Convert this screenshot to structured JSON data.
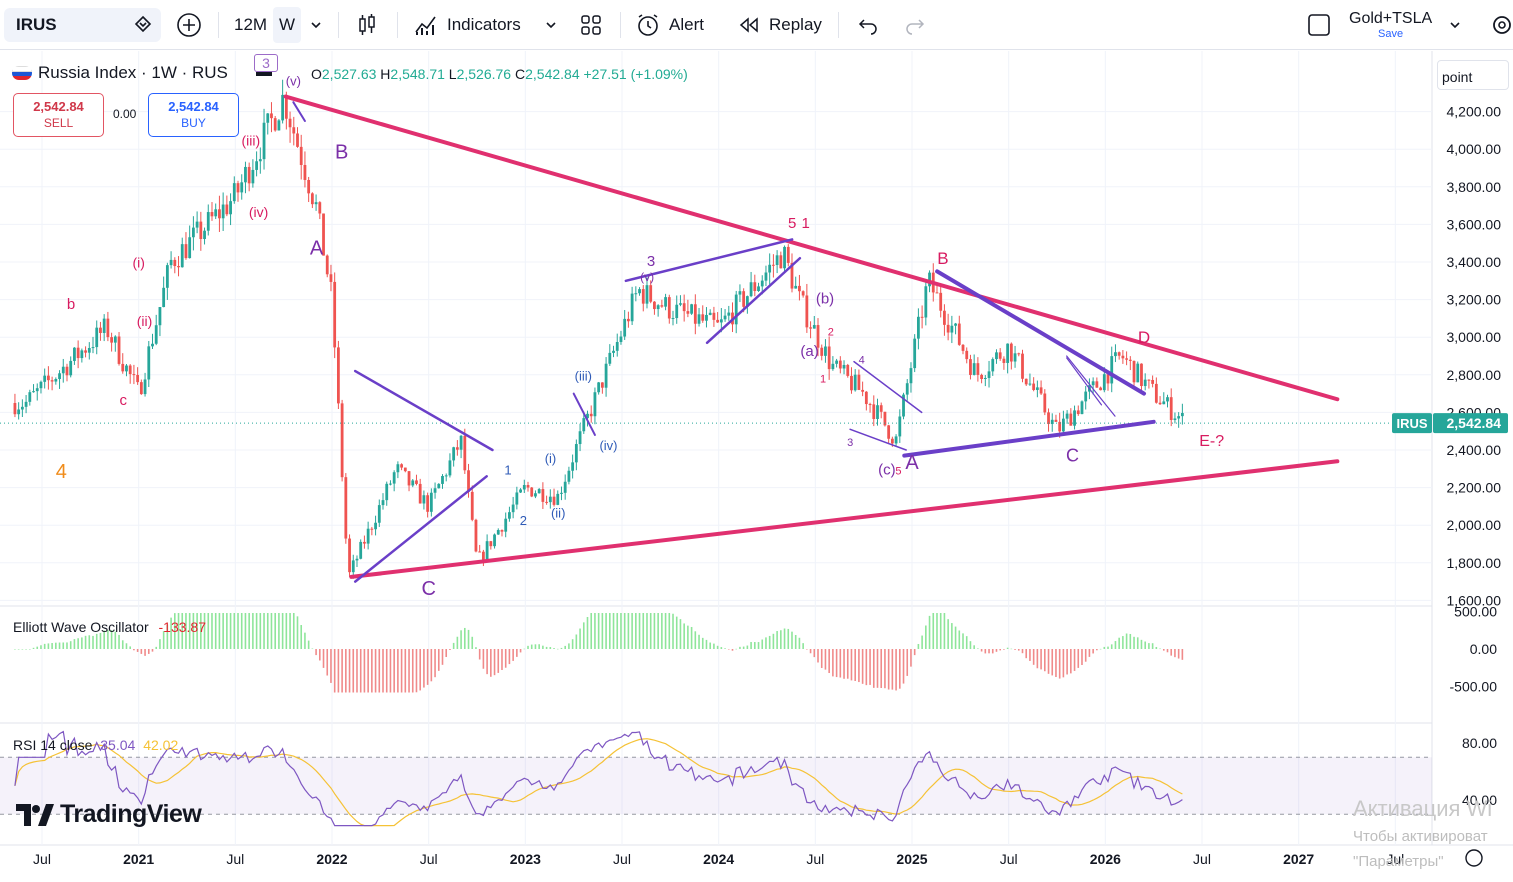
{
  "toolbar": {
    "symbol": "IRUS",
    "interval": "12M",
    "timeframe": "W",
    "indicators": "Indicators",
    "alert": "Alert",
    "replay": "Replay",
    "layout_name": "Gold+TSLA",
    "layout_save": "Save"
  },
  "legend": {
    "title": "Russia Index · 1W · RUS",
    "open_label": "O",
    "open": "2,527.63",
    "high_label": "H",
    "high": "2,548.71",
    "low_label": "L",
    "low": "2,526.76",
    "close_label": "C",
    "close": "2,542.84",
    "change": "+27.51 (+1.09%)",
    "badge": "3"
  },
  "trade": {
    "sell_price": "2,542.84",
    "sell_label": "SELL",
    "spread": "0.00",
    "buy_price": "2,542.84",
    "buy_label": "BUY"
  },
  "price_axis": {
    "unit": "point",
    "ticks": [
      "4,200.00",
      "4,000.00",
      "3,800.00",
      "3,600.00",
      "3,400.00",
      "3,200.00",
      "3,000.00",
      "2,800.00",
      "2,600.00",
      "2,400.00",
      "2,200.00",
      "2,000.00",
      "1,800.00",
      "1,600.00"
    ],
    "last_symbol": "IRUS",
    "last_price": "2,542.84"
  },
  "time_axis": {
    "ticks": [
      "Jul",
      "2021",
      "Jul",
      "2022",
      "Jul",
      "2023",
      "Jul",
      "2024",
      "Jul",
      "2025",
      "Jul",
      "2026",
      "Jul",
      "2027",
      "Jul"
    ]
  },
  "oscillator": {
    "name": "Elliott Wave Oscillator",
    "value": "-133.87",
    "ticks": [
      "500.00",
      "0.00",
      "-500.00"
    ]
  },
  "rsi": {
    "name": "RSI 14 close",
    "value": "35.04",
    "ma_value": "42.02",
    "ticks": [
      "80.00",
      "40.00"
    ]
  },
  "wave_labels": {
    "major": [
      "4",
      "A",
      "B",
      "C",
      "A",
      "B",
      "C",
      "D",
      "E-?"
    ],
    "minor": [
      "b",
      "c",
      "(i)",
      "(ii)",
      "(iii)",
      "(iv)",
      "(v)",
      "v)",
      "1",
      "2",
      "(i)",
      "(ii)",
      "(iii)",
      "(iv)",
      "(v)",
      "3",
      "5",
      "1",
      "(a)",
      "(b)",
      "(c)",
      "1",
      "2",
      "3",
      "4",
      "5"
    ]
  },
  "branding": {
    "logo": "TradingView"
  },
  "watermark": {
    "line1": "Активация Wi",
    "line2": "Чтобы активироват",
    "line3": "\"Параметры\""
  },
  "colors": {
    "up": "#26a69a",
    "down": "#ef5350",
    "triangle": "#e0306f",
    "wave": "#6a3fc8",
    "osc_up": "#8ee59a",
    "osc_down": "#f08a8a",
    "rsi": "#7e57c2",
    "rsi_ma": "#f5c236"
  },
  "chart_data": {
    "type": "candlestick",
    "title": "Russia Index · 1W · RUS",
    "ylim": [
      1600,
      4300
    ],
    "x_range": [
      "2020-05",
      "2027-10"
    ],
    "key_points": [
      {
        "date": "2020-06",
        "price": 2650
      },
      {
        "date": "2020-11",
        "price": 3050
      },
      {
        "date": "2021-01",
        "price": 2700
      },
      {
        "date": "2021-03",
        "price": 3400
      },
      {
        "date": "2021-07",
        "price": 3750
      },
      {
        "date": "2021-10",
        "price": 4280
      },
      {
        "date": "2021-12",
        "price": 3700
      },
      {
        "date": "2022-01",
        "price": 3200
      },
      {
        "date": "2022-02",
        "price": 1720
      },
      {
        "date": "2022-05",
        "price": 2300
      },
      {
        "date": "2022-07",
        "price": 2100
      },
      {
        "date": "2022-09",
        "price": 2450
      },
      {
        "date": "2022-10",
        "price": 1800
      },
      {
        "date": "2023-01",
        "price": 2200
      },
      {
        "date": "2023-03",
        "price": 2150
      },
      {
        "date": "2023-05",
        "price": 2600
      },
      {
        "date": "2023-08",
        "price": 3250
      },
      {
        "date": "2023-10",
        "price": 3150
      },
      {
        "date": "2024-01",
        "price": 3050
      },
      {
        "date": "2024-05",
        "price": 3450
      },
      {
        "date": "2024-06",
        "price": 3200
      },
      {
        "date": "2024-08",
        "price": 2850
      },
      {
        "date": "2024-10",
        "price": 2700
      },
      {
        "date": "2024-12",
        "price": 2450
      },
      {
        "date": "2025-02",
        "price": 3300
      },
      {
        "date": "2025-05",
        "price": 2800
      },
      {
        "date": "2025-07",
        "price": 2950
      },
      {
        "date": "2025-10",
        "price": 2500
      },
      {
        "date": "2026-02",
        "price": 2900
      },
      {
        "date": "2026-04",
        "price": 2700
      },
      {
        "date": "2026-06",
        "price": 2542.84
      }
    ],
    "ewo_range": [
      -600,
      500
    ],
    "rsi_range": [
      20,
      90
    ],
    "rsi_levels": [
      70,
      30
    ]
  }
}
